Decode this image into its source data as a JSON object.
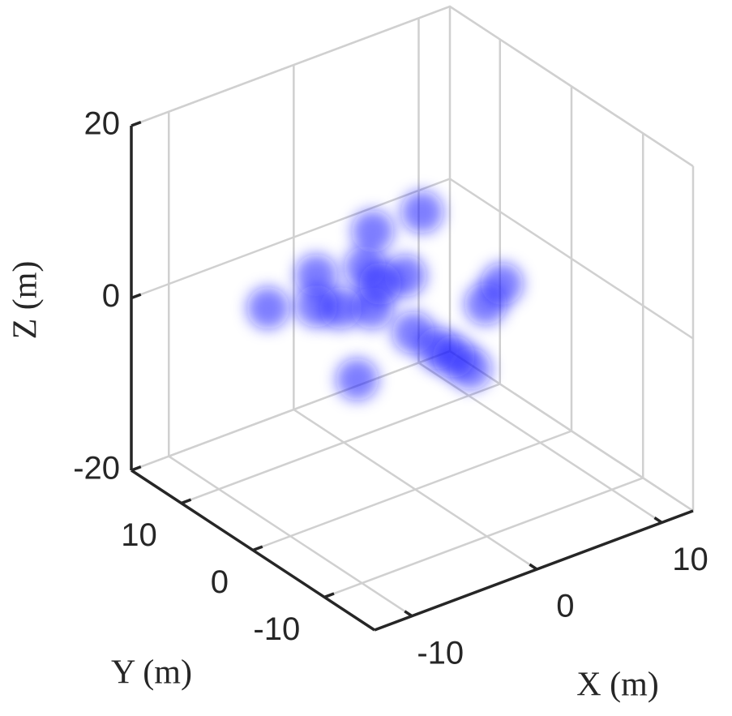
{
  "chart_data": {
    "type": "scatter3d",
    "x_label": "X (m)",
    "y_label": "Y (m)",
    "z_label": "Z (m)",
    "xlim": [
      -13,
      12.5
    ],
    "ylim": [
      -17,
      17
    ],
    "zlim": [
      -20,
      20
    ],
    "xticks": [
      -10,
      0,
      10
    ],
    "yticks": [
      -10,
      0,
      10
    ],
    "zticks": [
      -20,
      0,
      20
    ],
    "grid": true,
    "series": [
      {
        "color": "#1a1aff",
        "x": [
          -1.8,
          1.3,
          2.7,
          -1.5,
          -3.1,
          -1.3,
          -1.3,
          -1.2,
          4.5,
          -4.2,
          4.6,
          -6.8,
          7.0,
          8.5,
          -7.8,
          -1.1,
          0.8
        ],
        "y": [
          10.7,
          9.3,
          6.1,
          3.4,
          5.0,
          -2.0,
          -5.4,
          -9.8,
          13.8,
          6.5,
          -1.8,
          8.7,
          0.1,
          13.9,
          -5.5,
          -7.3,
          6.3
        ],
        "z": [
          0,
          0,
          0,
          0,
          0,
          0,
          0,
          0,
          0,
          0,
          0,
          0,
          0,
          0,
          0,
          0,
          0
        ]
      }
    ]
  }
}
